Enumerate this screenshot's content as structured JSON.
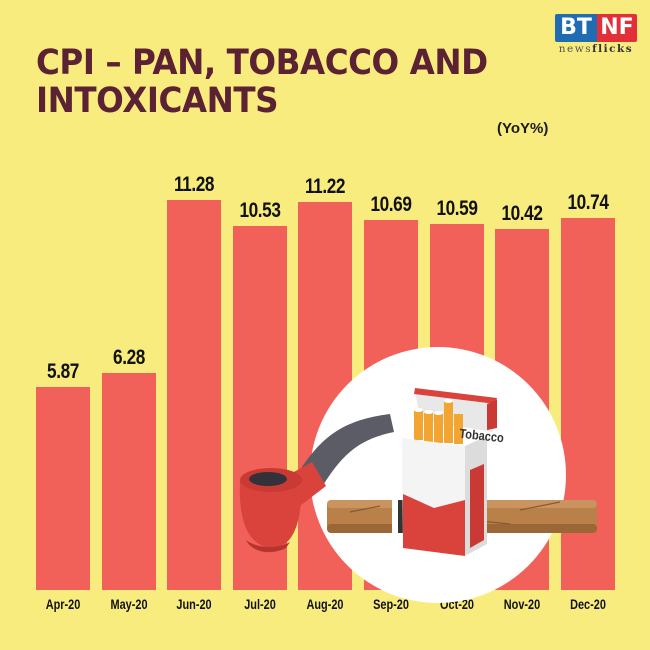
{
  "header": {
    "title_line1": "CPI – PAN, TOBACCO AND",
    "title_line2": "INTOXICANTS",
    "unit_label": "(YoY%)"
  },
  "logo": {
    "left": "BT",
    "right": "NF",
    "tagline_regular": "news",
    "tagline_bold": "flicks"
  },
  "illustration": {
    "pack_label": "Tobacco"
  },
  "colors": {
    "background": "#f9ec7e",
    "bar": "#f2605a",
    "title": "#5a2233"
  },
  "chart_data": {
    "type": "bar",
    "title": "CPI – PAN, TOBACCO AND INTOXICANTS",
    "subtitle": "(YoY%)",
    "xlabel": "",
    "ylabel": "YoY%",
    "categories": [
      "Apr-20",
      "May-20",
      "Jun-20",
      "Jul-20",
      "Aug-20",
      "Sep-20",
      "Oct-20",
      "Nov-20",
      "Dec-20"
    ],
    "values": [
      5.87,
      6.28,
      11.28,
      10.53,
      11.22,
      10.69,
      10.59,
      10.42,
      10.74
    ],
    "value_labels": [
      "5.87",
      "6.28",
      "11.28",
      "10.53",
      "11.22",
      "10.69",
      "10.59",
      "10.42",
      "10.74"
    ],
    "ylim": [
      0,
      12
    ],
    "grid": false,
    "legend": "none",
    "data_labels": true
  }
}
